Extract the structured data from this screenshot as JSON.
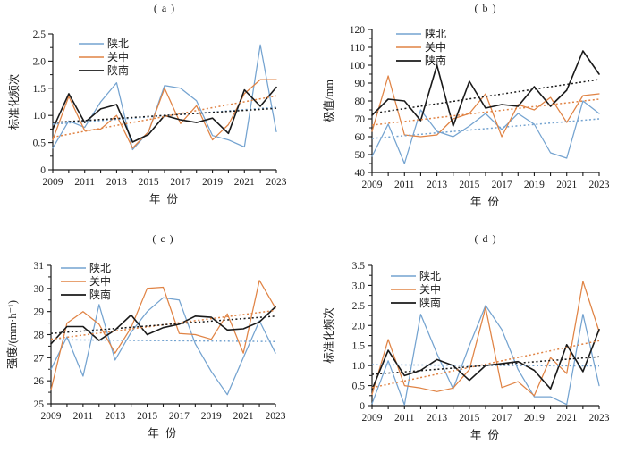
{
  "figure_title": "Four-panel precipitation statistics line charts",
  "legend": {
    "items": [
      "陕北",
      "关中",
      "陕南"
    ]
  },
  "colors": {
    "shaanbei_blue": "#74A3D0",
    "guanzhong_orange": "#E08344",
    "shaannan_black": "#1A1A1A"
  },
  "chart_data": [
    {
      "type": "line",
      "panel_label": "( a )",
      "xlabel": "年 份",
      "ylabel": "标准化频次",
      "x": [
        2009,
        2010,
        2011,
        2012,
        2013,
        2014,
        2015,
        2016,
        2017,
        2018,
        2019,
        2020,
        2021,
        2022,
        2023
      ],
      "xtick_labels": [
        "2009",
        "2011",
        "2013",
        "2015",
        "2017",
        "2019",
        "2021",
        "2023"
      ],
      "ylim": [
        0,
        2.5
      ],
      "ytick_values": [
        0,
        0.5,
        1.0,
        1.5,
        2.0,
        2.5
      ],
      "ytick_labels": [
        "0",
        "0.5",
        "1.0",
        "1.5",
        "2.0",
        "2.5"
      ],
      "y_minor_step": 0.25,
      "grid": false,
      "legend_position": "top-left",
      "series": [
        {
          "name": "陕北",
          "color": "#74A3D0",
          "values": [
            0.4,
            0.9,
            0.78,
            1.25,
            1.6,
            0.37,
            0.7,
            1.55,
            1.5,
            1.27,
            0.63,
            0.55,
            0.42,
            2.3,
            0.7
          ],
          "trend": [
            0.84,
            1.15
          ]
        },
        {
          "name": "关中",
          "color": "#E08344",
          "values": [
            0.55,
            1.35,
            0.72,
            0.75,
            1.0,
            0.4,
            0.7,
            1.5,
            0.85,
            1.18,
            0.55,
            0.83,
            1.4,
            1.66,
            1.66
          ],
          "trend": [
            0.6,
            1.36
          ]
        },
        {
          "name": "陕南",
          "color": "#1A1A1A",
          "values": [
            0.75,
            1.4,
            0.87,
            1.12,
            1.2,
            0.51,
            0.65,
            1.0,
            0.92,
            0.87,
            0.95,
            0.67,
            1.47,
            1.17,
            1.52
          ],
          "trend": [
            0.87,
            1.13
          ]
        }
      ]
    },
    {
      "type": "line",
      "panel_label": "( b )",
      "xlabel": "年 份",
      "ylabel": "极值/mm",
      "x": [
        2009,
        2010,
        2011,
        2012,
        2013,
        2014,
        2015,
        2016,
        2017,
        2018,
        2019,
        2020,
        2021,
        2022,
        2023
      ],
      "xtick_labels": [
        "2009",
        "2011",
        "2013",
        "2015",
        "2017",
        "2019",
        "2021",
        "2023"
      ],
      "ylim": [
        40,
        120
      ],
      "ytick_values": [
        40,
        50,
        60,
        70,
        80,
        90,
        100,
        110,
        120
      ],
      "ytick_labels": [
        "40",
        "50",
        "60",
        "70",
        "80",
        "90",
        "100",
        "110",
        "120"
      ],
      "y_minor_step": 5,
      "grid": false,
      "legend_position": "top-left",
      "series": [
        {
          "name": "陕北",
          "color": "#74A3D0",
          "values": [
            49,
            67,
            45,
            75,
            63,
            60,
            66,
            73,
            64,
            73,
            67,
            51,
            48,
            80,
            73
          ],
          "trend": [
            59,
            70
          ]
        },
        {
          "name": "关中",
          "color": "#E08344",
          "values": [
            63,
            94,
            61,
            60,
            61,
            70,
            73,
            84,
            60,
            78,
            75,
            82,
            68,
            83,
            84
          ],
          "trend": [
            66.5,
            81
          ]
        },
        {
          "name": "陕南",
          "color": "#1A1A1A",
          "values": [
            72,
            81,
            80,
            69,
            100,
            66,
            91,
            76,
            78,
            77,
            88,
            77,
            86,
            108,
            95
          ],
          "trend": [
            73,
            92
          ]
        }
      ]
    },
    {
      "type": "line",
      "panel_label": "( c )",
      "xlabel": "年 份",
      "ylabel": "强度/(mm·h⁻¹)",
      "x": [
        2009,
        2010,
        2011,
        2012,
        2013,
        2014,
        2015,
        2016,
        2017,
        2018,
        2019,
        2020,
        2021,
        2022,
        2023
      ],
      "xtick_labels": [
        "2009",
        "2011",
        "2013",
        "2015",
        "2017",
        "2019",
        "2021",
        "2023"
      ],
      "ylim": [
        25,
        31
      ],
      "ytick_values": [
        25,
        26,
        27,
        28,
        29,
        30,
        31
      ],
      "ytick_labels": [
        "25",
        "26",
        "27",
        "28",
        "29",
        "30",
        "31"
      ],
      "y_minor_step": 0.5,
      "grid": false,
      "legend_position": "top-left",
      "series": [
        {
          "name": "陕北",
          "color": "#74A3D0",
          "values": [
            26.5,
            27.9,
            26.2,
            29.3,
            26.9,
            28.1,
            29.0,
            29.6,
            29.5,
            27.6,
            26.4,
            25.4,
            27.0,
            28.6,
            27.2
          ],
          "trend": [
            27.78,
            27.7
          ]
        },
        {
          "name": "关中",
          "color": "#E08344",
          "values": [
            25.6,
            28.5,
            29.0,
            28.45,
            27.2,
            28.3,
            30.0,
            30.05,
            28.05,
            28.0,
            27.8,
            28.9,
            27.2,
            30.35,
            29.15
          ],
          "trend": [
            27.8,
            29.05
          ]
        },
        {
          "name": "陕南",
          "color": "#1A1A1A",
          "values": [
            27.6,
            28.35,
            28.35,
            27.75,
            28.2,
            28.85,
            28.0,
            28.3,
            28.45,
            28.8,
            28.75,
            28.2,
            28.25,
            28.55,
            29.2
          ],
          "trend": [
            28.05,
            28.8
          ]
        }
      ]
    },
    {
      "type": "line",
      "panel_label": "( d )",
      "xlabel": "年 份",
      "ylabel": "标准化频次",
      "x": [
        2009,
        2010,
        2011,
        2012,
        2013,
        2014,
        2015,
        2016,
        2017,
        2018,
        2019,
        2020,
        2021,
        2022,
        2023
      ],
      "xtick_labels": [
        "2009",
        "2011",
        "2013",
        "2015",
        "2017",
        "2019",
        "2021",
        "2023"
      ],
      "ylim": [
        0,
        3.5
      ],
      "ytick_values": [
        0,
        0.5,
        1.0,
        1.5,
        2.0,
        2.5,
        3.0,
        3.5
      ],
      "ytick_labels": [
        "0",
        "0.5",
        "1.0",
        "1.5",
        "2.0",
        "2.5",
        "3.0",
        "3.5"
      ],
      "y_minor_step": 0.25,
      "grid": false,
      "legend_position": "top-left",
      "series": [
        {
          "name": "陕北",
          "color": "#74A3D0",
          "values": [
            0.05,
            1.12,
            0.02,
            2.28,
            1.3,
            0.42,
            1.5,
            2.5,
            1.9,
            0.9,
            0.22,
            0.22,
            0.03,
            2.28,
            0.5
          ],
          "trend": [
            1.02,
            0.99
          ]
        },
        {
          "name": "关中",
          "color": "#E08344",
          "values": [
            0.28,
            1.65,
            0.5,
            0.44,
            0.35,
            0.44,
            0.9,
            2.45,
            0.45,
            0.6,
            0.25,
            1.2,
            0.8,
            3.1,
            1.85
          ],
          "trend": [
            0.45,
            1.62
          ]
        },
        {
          "name": "陕南",
          "color": "#1A1A1A",
          "values": [
            0.4,
            1.38,
            0.75,
            0.88,
            1.15,
            1.0,
            0.63,
            1.0,
            1.05,
            1.1,
            0.88,
            0.42,
            1.52,
            0.85,
            1.9
          ],
          "trend": [
            0.78,
            1.22
          ]
        }
      ]
    }
  ]
}
